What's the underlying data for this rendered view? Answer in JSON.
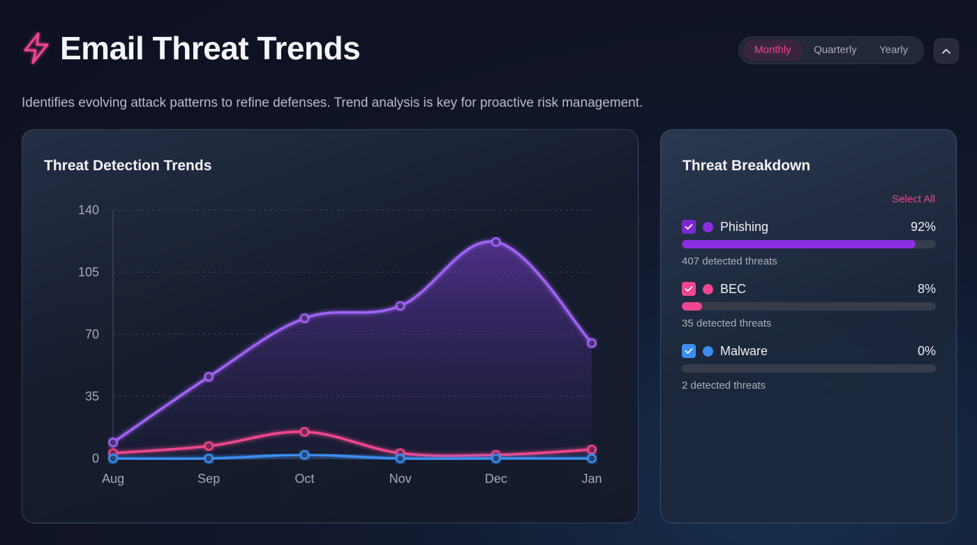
{
  "header": {
    "title": "Email Threat Trends",
    "subtitle": "Identifies evolving attack patterns to refine defenses. Trend analysis is key for proactive risk management.",
    "periods": [
      "Monthly",
      "Quarterly",
      "Yearly"
    ],
    "active_period": "Monthly"
  },
  "chart_card": {
    "title": "Threat Detection Trends"
  },
  "breakdown": {
    "title": "Threat Breakdown",
    "select_all": "Select All",
    "items": [
      {
        "name": "Phishing",
        "percent": "92%",
        "fill": 0.92,
        "count_text": "407 detected threats",
        "color": "#8b2ee0"
      },
      {
        "name": "BEC",
        "percent": "8%",
        "fill": 0.08,
        "count_text": "35 detected threats",
        "color": "#f0468f"
      },
      {
        "name": "Malware",
        "percent": "0%",
        "fill": 0.0,
        "count_text": "2 detected threats",
        "color": "#3b8ff0"
      }
    ]
  },
  "colors": {
    "accent": "#f0468f",
    "phishing": "#a064f5",
    "bec": "#f0468f",
    "malware": "#3b8ff0"
  },
  "chart_data": {
    "type": "line",
    "title": "Threat Detection Trends",
    "categories": [
      "Aug",
      "Sep",
      "Oct",
      "Nov",
      "Dec",
      "Jan"
    ],
    "yticks": [
      0,
      35,
      70,
      105,
      140
    ],
    "ylim": [
      0,
      140
    ],
    "series": [
      {
        "name": "Phishing",
        "values": [
          9,
          46,
          79,
          86,
          122,
          65
        ],
        "color": "#a064f5",
        "area": true
      },
      {
        "name": "BEC",
        "values": [
          3,
          7,
          15,
          3,
          2,
          5
        ],
        "color": "#f0468f",
        "area": false
      },
      {
        "name": "Malware",
        "values": [
          0,
          0,
          2,
          0,
          0,
          0
        ],
        "color": "#3b8ff0",
        "area": false
      }
    ]
  }
}
